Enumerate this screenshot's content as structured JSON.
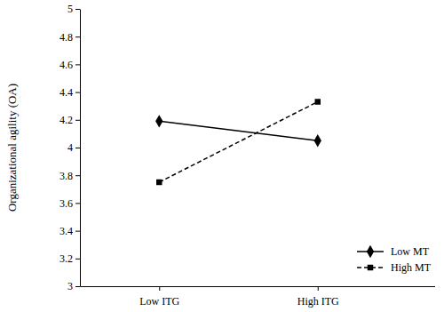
{
  "chart_data": {
    "type": "line",
    "y_label": "Organizational agility (OA)",
    "categories": [
      "Low ITG",
      "High ITG"
    ],
    "series": [
      {
        "name": "Low MT",
        "color": "#000000",
        "marker": "diamond",
        "line_style": "solid",
        "values": [
          4.19,
          4.05
        ]
      },
      {
        "name": "High MT",
        "color": "#000000",
        "marker": "square",
        "line_style": "dashed",
        "values": [
          3.75,
          4.33
        ]
      }
    ],
    "ylim": [
      3,
      5
    ],
    "yticks": [
      3,
      3.2,
      3.4,
      3.6,
      3.8,
      4,
      4.2,
      4.4,
      4.6,
      4.8,
      5
    ],
    "grid": false,
    "legend": "lower right"
  }
}
